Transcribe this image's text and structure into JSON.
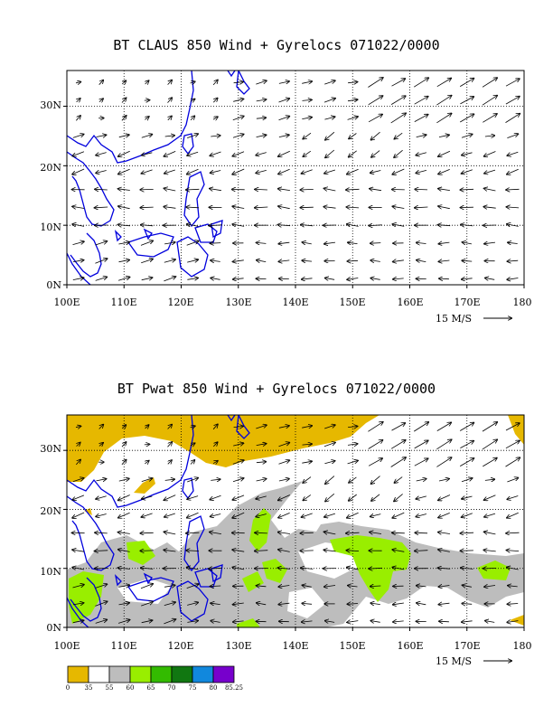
{
  "panel1": {
    "title": "BT CLAUS 850 Wind + Gyrelocs 071022/0000",
    "lon_labels": [
      "100E",
      "110E",
      "120E",
      "130E",
      "140E",
      "150E",
      "160E",
      "170E",
      "180"
    ],
    "lat_labels": [
      "0N",
      "10N",
      "20N",
      "30N"
    ],
    "scale_label": "15 M/S"
  },
  "panel2": {
    "title": "BT Pwat 850 Wind + Gyrelocs 071022/0000",
    "lon_labels": [
      "100E",
      "110E",
      "120E",
      "130E",
      "140E",
      "150E",
      "160E",
      "170E",
      "180"
    ],
    "lat_labels": [
      "0N",
      "10N",
      "20N",
      "30N"
    ],
    "scale_label": "15 M/S"
  },
  "colorbar": {
    "colors": [
      "#e6b800",
      "#ffffff",
      "#bdbdbd",
      "#99ee00",
      "#33bb00",
      "#117711",
      "#1188dd",
      "#7700cc"
    ],
    "labels": [
      "0",
      "35",
      "55",
      "60",
      "65",
      "70",
      "75",
      "80",
      "85.25"
    ]
  },
  "map": {
    "lon_range": [
      100,
      180
    ],
    "lat_range": [
      0,
      36
    ],
    "coast_color": "#0000dd",
    "grid": "dotted"
  }
}
